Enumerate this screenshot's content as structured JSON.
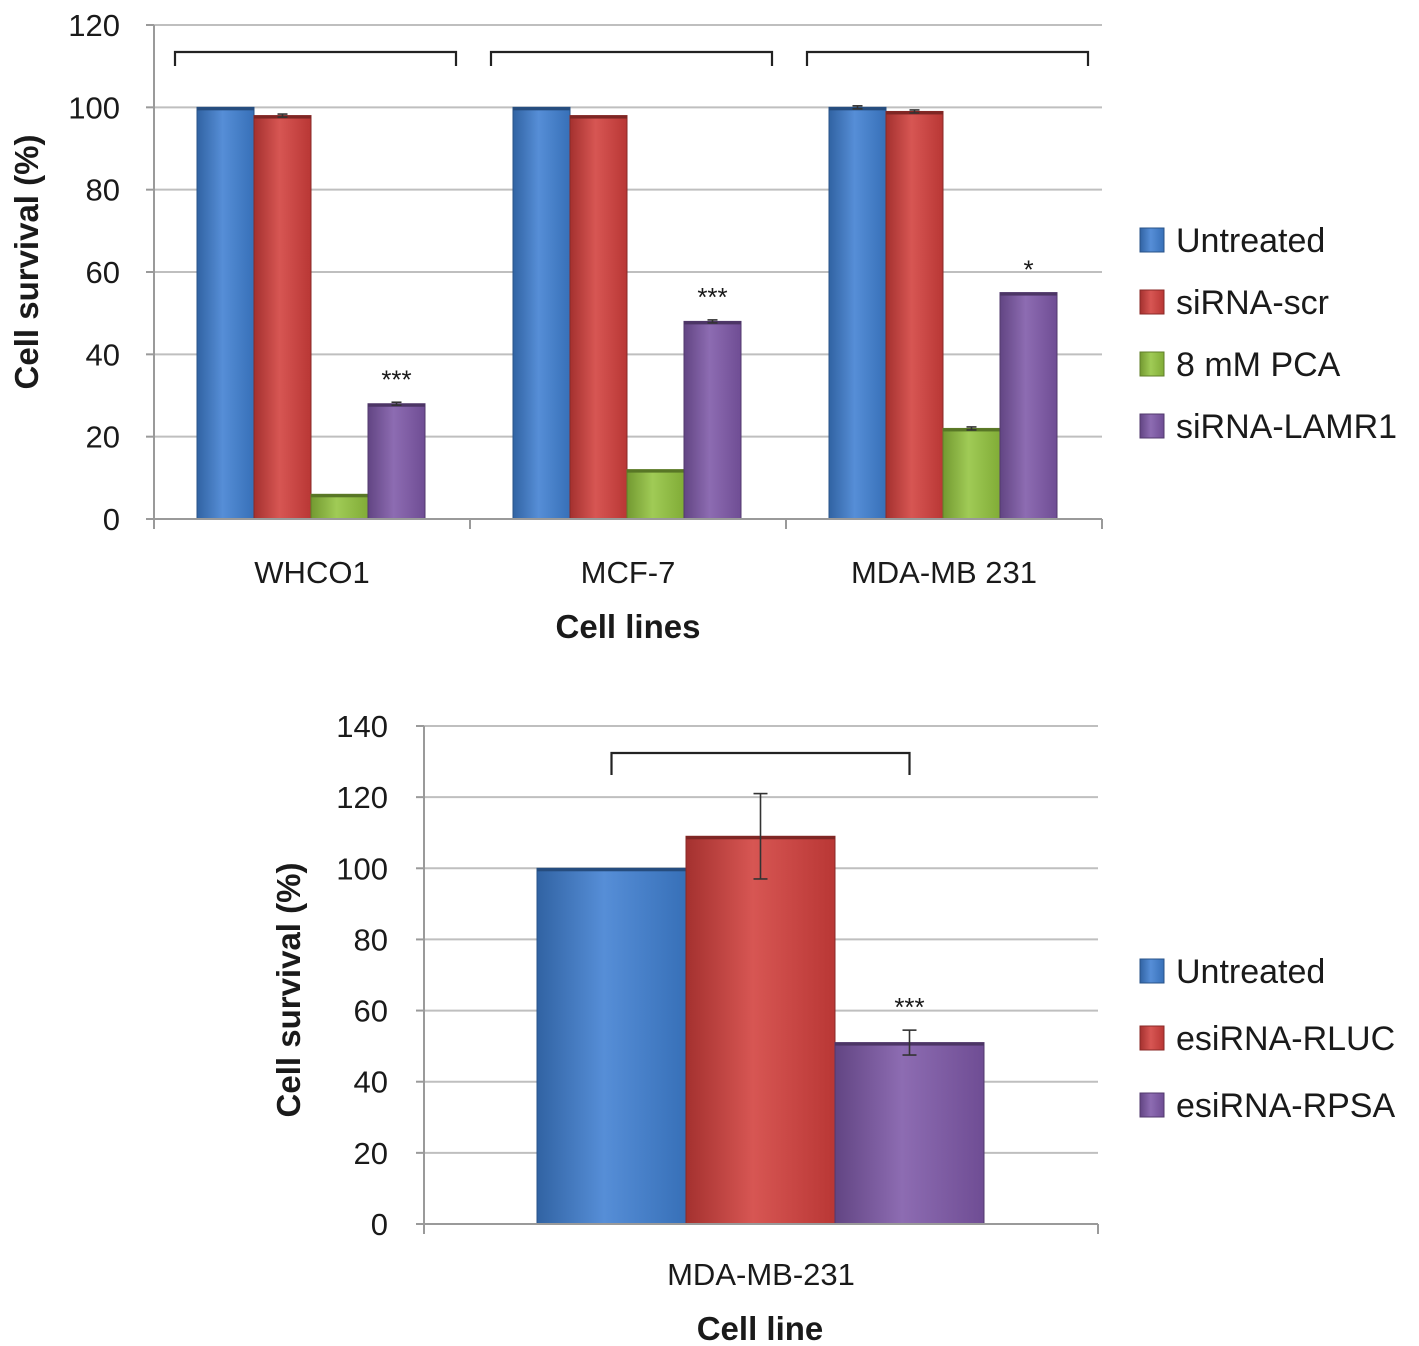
{
  "chart_data": [
    {
      "type": "bar",
      "xlabel": "Cell lines",
      "ylabel": "Cell survival (%)",
      "ylim": [
        0,
        120
      ],
      "yticks": [
        0,
        20,
        40,
        60,
        80,
        100,
        120
      ],
      "grid": true,
      "legend_position": "right",
      "categories": [
        "WHCO1",
        "MCF-7",
        "MDA-MB 231"
      ],
      "series": [
        {
          "name": "Untreated",
          "color": "#3f7fd1",
          "values": [
            100,
            100,
            100
          ],
          "errors": [
            0,
            0,
            0.3
          ]
        },
        {
          "name": "siRNA-scr",
          "color": "#d23f3c",
          "values": [
            98,
            98,
            99
          ],
          "errors": [
            0.3,
            0,
            0.3
          ]
        },
        {
          "name": "8 mM PCA",
          "color": "#93c43f",
          "values": [
            6,
            12,
            22
          ],
          "errors": [
            0,
            0,
            0.2
          ]
        },
        {
          "name": "siRNA-LAMR1",
          "color": "#7e58a8",
          "values": [
            28,
            48,
            55
          ],
          "errors": [
            0.3,
            0.3,
            0
          ]
        }
      ],
      "annotations": [
        "***",
        "***",
        "*"
      ]
    },
    {
      "type": "bar",
      "xlabel": "Cell line",
      "ylabel": "Cell survival (%)",
      "ylim": [
        0,
        140
      ],
      "yticks": [
        0,
        20,
        40,
        60,
        80,
        100,
        120,
        140
      ],
      "grid": true,
      "legend_position": "right",
      "categories": [
        "MDA-MB-231"
      ],
      "series": [
        {
          "name": "Untreated",
          "color": "#3f7fd1",
          "values": [
            100
          ],
          "errors": [
            0
          ]
        },
        {
          "name": "esiRNA-RLUC",
          "color": "#d23f3c",
          "values": [
            109
          ],
          "errors": [
            12
          ]
        },
        {
          "name": "esiRNA-RPSA",
          "color": "#7e58a8",
          "values": [
            51
          ],
          "errors": [
            3.5
          ]
        }
      ],
      "annotations": [
        "***"
      ]
    }
  ]
}
